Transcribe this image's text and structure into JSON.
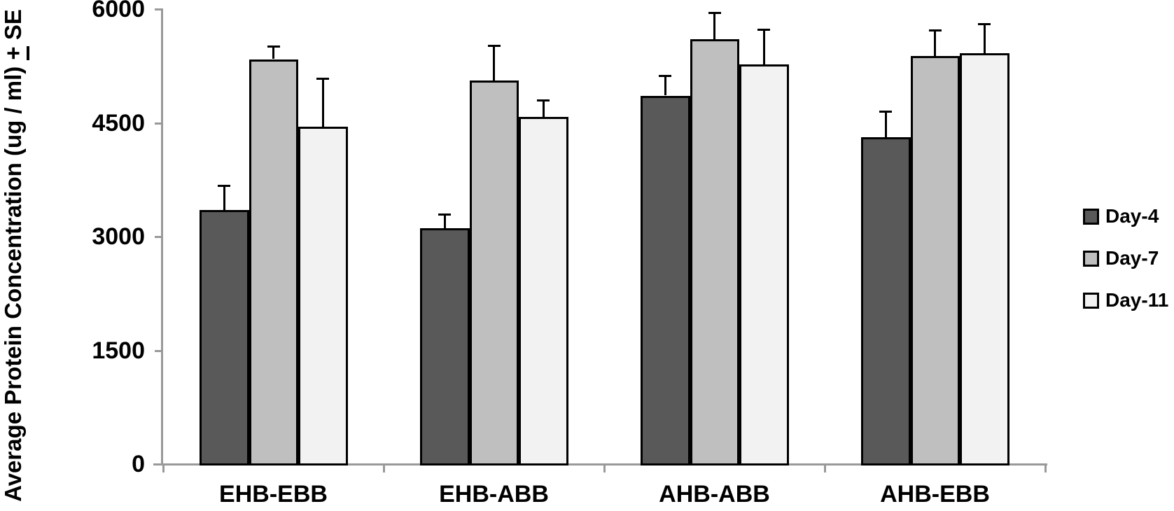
{
  "chart_data": {
    "type": "bar",
    "subtype": "grouped-vertical-with-error-bars",
    "title": "",
    "xlabel": "",
    "ylabel": "Average Protein Concentration (ug / ml) + SE",
    "ylabel_parts": {
      "main": "Average Protein Concentration (ug / ml) ",
      "plus": "+",
      "suffix": " SE"
    },
    "categories": [
      "EHB-EBB",
      "EHB-ABB",
      "AHB-ABB",
      "AHB-EBB"
    ],
    "series": [
      {
        "name": "Day-4",
        "color": "#595959",
        "values": [
          3350,
          3110,
          4860,
          4310
        ],
        "se": [
          320,
          185,
          260,
          340
        ]
      },
      {
        "name": "Day-7",
        "color": "#bfbfbf",
        "values": [
          5340,
          5060,
          5600,
          5380
        ],
        "se": [
          170,
          460,
          350,
          340
        ]
      },
      {
        "name": "Day-11",
        "color": "#f2f2f2",
        "values": [
          4450,
          4580,
          5270,
          5420
        ],
        "se": [
          630,
          220,
          460,
          380
        ]
      }
    ],
    "yticks": [
      0,
      1500,
      3000,
      4500,
      6000
    ],
    "ylim": [
      0,
      6000
    ],
    "grid": false,
    "legend_position": "right",
    "error_bar_direction": "plus-only",
    "colors": {
      "bar_border": "#000000",
      "error_bar": "#000000",
      "axis": "#999999",
      "text": "#000000",
      "background": "#ffffff"
    }
  }
}
